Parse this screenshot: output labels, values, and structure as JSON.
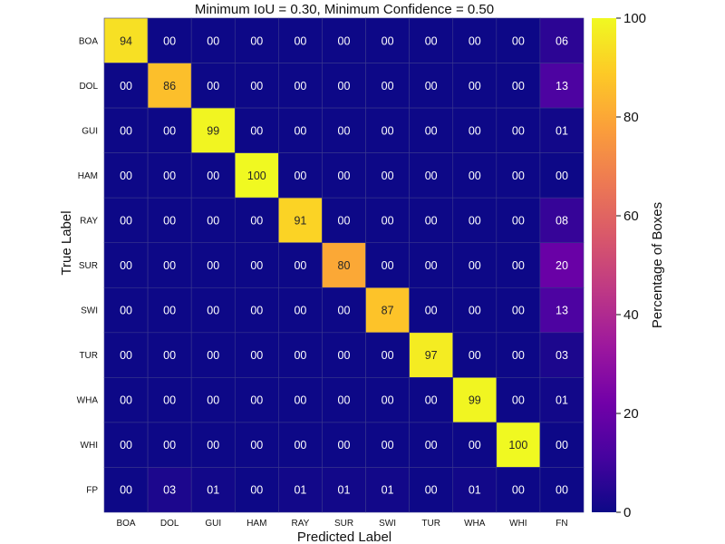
{
  "chart_data": {
    "type": "heatmap",
    "title": "Minimum IoU = 0.30, Minimum Confidence = 0.50",
    "xlabel": "Predicted Label",
    "ylabel": "True Label",
    "x_categories": [
      "BOA",
      "DOL",
      "GUI",
      "HAM",
      "RAY",
      "SUR",
      "SWI",
      "TUR",
      "WHA",
      "WHI",
      "FN"
    ],
    "y_categories": [
      "BOA",
      "DOL",
      "GUI",
      "HAM",
      "RAY",
      "SUR",
      "SWI",
      "TUR",
      "WHA",
      "WHI",
      "FP"
    ],
    "values": [
      [
        94,
        0,
        0,
        0,
        0,
        0,
        0,
        0,
        0,
        0,
        6
      ],
      [
        0,
        86,
        0,
        0,
        0,
        0,
        0,
        0,
        0,
        0,
        13
      ],
      [
        0,
        0,
        99,
        0,
        0,
        0,
        0,
        0,
        0,
        0,
        1
      ],
      [
        0,
        0,
        0,
        100,
        0,
        0,
        0,
        0,
        0,
        0,
        0
      ],
      [
        0,
        0,
        0,
        0,
        91,
        0,
        0,
        0,
        0,
        0,
        8
      ],
      [
        0,
        0,
        0,
        0,
        0,
        80,
        0,
        0,
        0,
        0,
        20
      ],
      [
        0,
        0,
        0,
        0,
        0,
        0,
        87,
        0,
        0,
        0,
        13
      ],
      [
        0,
        0,
        0,
        0,
        0,
        0,
        0,
        97,
        0,
        0,
        3
      ],
      [
        0,
        0,
        0,
        0,
        0,
        0,
        0,
        0,
        99,
        0,
        1
      ],
      [
        0,
        0,
        0,
        0,
        0,
        0,
        0,
        0,
        0,
        100,
        0
      ],
      [
        0,
        3,
        1,
        0,
        1,
        1,
        1,
        0,
        1,
        0,
        0
      ]
    ],
    "labels": [
      [
        "94",
        "00",
        "00",
        "00",
        "00",
        "00",
        "00",
        "00",
        "00",
        "00",
        "06"
      ],
      [
        "00",
        "86",
        "00",
        "00",
        "00",
        "00",
        "00",
        "00",
        "00",
        "00",
        "13"
      ],
      [
        "00",
        "00",
        "99",
        "00",
        "00",
        "00",
        "00",
        "00",
        "00",
        "00",
        "01"
      ],
      [
        "00",
        "00",
        "00",
        "100",
        "00",
        "00",
        "00",
        "00",
        "00",
        "00",
        "00"
      ],
      [
        "00",
        "00",
        "00",
        "00",
        "91",
        "00",
        "00",
        "00",
        "00",
        "00",
        "08"
      ],
      [
        "00",
        "00",
        "00",
        "00",
        "00",
        "80",
        "00",
        "00",
        "00",
        "00",
        "20"
      ],
      [
        "00",
        "00",
        "00",
        "00",
        "00",
        "00",
        "87",
        "00",
        "00",
        "00",
        "13"
      ],
      [
        "00",
        "00",
        "00",
        "00",
        "00",
        "00",
        "00",
        "97",
        "00",
        "00",
        "03"
      ],
      [
        "00",
        "00",
        "00",
        "00",
        "00",
        "00",
        "00",
        "00",
        "99",
        "00",
        "01"
      ],
      [
        "00",
        "00",
        "00",
        "00",
        "00",
        "00",
        "00",
        "00",
        "00",
        "100",
        "00"
      ],
      [
        "00",
        "03",
        "01",
        "00",
        "01",
        "01",
        "01",
        "00",
        "01",
        "00",
        "00"
      ]
    ],
    "colorbar": {
      "label": "Percentage of Boxes",
      "range": [
        0,
        100
      ],
      "ticks": [
        0,
        20,
        40,
        60,
        80,
        100
      ],
      "colormap": "plasma"
    },
    "colormap_stops": [
      "#0d0887",
      "#46039f",
      "#7201a8",
      "#9c179e",
      "#bd3786",
      "#d8576b",
      "#ed7953",
      "#fb9f3a",
      "#fdca26",
      "#f0f921"
    ],
    "grid": true
  }
}
